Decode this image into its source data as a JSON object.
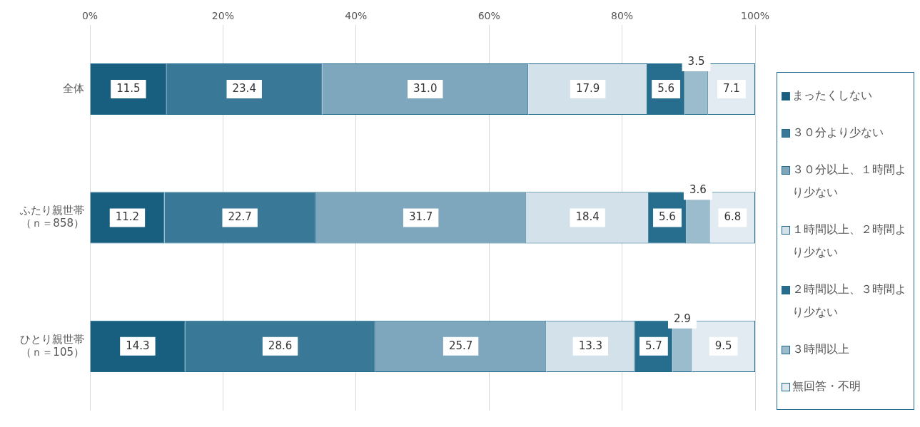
{
  "chart_data": {
    "type": "bar",
    "orientation": "horizontal",
    "stacked": true,
    "categories": [
      "全体",
      "ふたり親世帯（ｎ＝858）",
      "ひとり親世帯（ｎ＝105）"
    ],
    "series": [
      {
        "name": "まったくしない",
        "color": "#175e7f",
        "values": [
          11.5,
          11.2,
          14.3
        ],
        "value_labels": [
          "11.5",
          "11.2",
          "14.3"
        ]
      },
      {
        "name": "３０分より少ない",
        "color": "#3a7898",
        "values": [
          23.4,
          22.7,
          28.6
        ],
        "value_labels": [
          "23.4",
          "22.7",
          "28.6"
        ]
      },
      {
        "name": "３０分以上、１時間より少ない",
        "color": "#7ea6bc",
        "values": [
          31.0,
          31.7,
          25.7
        ],
        "value_labels": [
          "31.0",
          "31.7",
          "25.7"
        ]
      },
      {
        "name": "１時間以上、２時間より少ない",
        "color": "#d3e2ea",
        "values": [
          17.9,
          18.4,
          13.3
        ],
        "value_labels": [
          "17.9",
          "18.4",
          "13.3"
        ]
      },
      {
        "name": "２時間以上、３時間より少ない",
        "color": "#266d8e",
        "values": [
          5.6,
          5.6,
          5.7
        ],
        "value_labels": [
          "5.6",
          "5.6",
          "5.7"
        ]
      },
      {
        "name": "３時間以上",
        "color": "#9bbccd",
        "values": [
          3.5,
          3.6,
          2.9
        ],
        "value_labels": [
          "3.5",
          "3.6",
          "2.9"
        ]
      },
      {
        "name": "無回答・不明",
        "color": "#e1ebf1",
        "values": [
          7.1,
          6.8,
          9.5
        ],
        "value_labels": [
          "7.1",
          "6.8",
          "9.5"
        ]
      }
    ],
    "xlim": [
      0,
      100
    ],
    "xticks": [
      {
        "value": 0,
        "label": "0%"
      },
      {
        "value": 20,
        "label": "20%"
      },
      {
        "value": 40,
        "label": "40%"
      },
      {
        "value": 60,
        "label": "60%"
      },
      {
        "value": 80,
        "label": "80%"
      },
      {
        "value": 100,
        "label": "100%"
      }
    ],
    "grid": "x",
    "legend": "right"
  }
}
